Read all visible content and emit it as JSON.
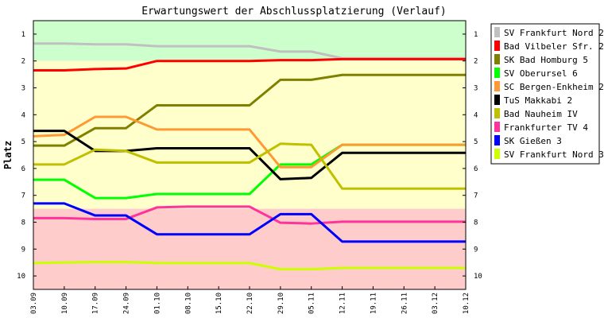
{
  "chart_data": {
    "type": "line",
    "title": "Erwartungswert der Abschlussplatzierung (Verlauf)",
    "ylabel": "Platz",
    "xlabel": "",
    "categories": [
      "03.09",
      "10.09",
      "17.09",
      "24.09",
      "01.10",
      "08.10",
      "15.10",
      "22.10",
      "29.10",
      "05.11",
      "12.11",
      "19.11",
      "26.11",
      "03.12",
      "10.12"
    ],
    "ylim": [
      0.5,
      10.5
    ],
    "y_inverted": true,
    "y_ticks": [
      1,
      2,
      3,
      4,
      5,
      6,
      7,
      8,
      9,
      10
    ],
    "y_ticks_right": true,
    "grid": false,
    "legend_position": "right",
    "background_bands": [
      {
        "from": 0.5,
        "to": 2.0,
        "color": "#ccffcc"
      },
      {
        "from": 2.0,
        "to": 7.5,
        "color": "#ffffcc"
      },
      {
        "from": 7.5,
        "to": 10.5,
        "color": "#ffcccc"
      }
    ],
    "series": [
      {
        "name": "SV Frankfurt Nord 2",
        "color": "#c0c0c0",
        "values": [
          1.35,
          1.35,
          1.38,
          1.38,
          1.45,
          1.45,
          1.45,
          1.45,
          1.65,
          1.65,
          1.9,
          1.9,
          1.9,
          1.9,
          1.9
        ]
      },
      {
        "name": "Bad Vilbeler Sfr. 2",
        "color": "#ff0000",
        "values": [
          2.35,
          2.35,
          2.3,
          2.28,
          2.0,
          2.0,
          2.0,
          2.0,
          1.97,
          1.97,
          1.93,
          1.93,
          1.93,
          1.93,
          1.93
        ]
      },
      {
        "name": "SK Bad Homburg 5",
        "color": "#808000",
        "values": [
          5.15,
          5.15,
          4.5,
          4.5,
          3.65,
          3.65,
          3.65,
          3.65,
          2.7,
          2.7,
          2.52,
          2.52,
          2.52,
          2.52,
          2.52
        ]
      },
      {
        "name": "SV Oberursel 6",
        "color": "#00ff00",
        "values": [
          6.42,
          6.42,
          7.1,
          7.1,
          6.95,
          6.95,
          6.95,
          6.95,
          5.85,
          5.85,
          5.12,
          5.12,
          5.12,
          5.12,
          5.12
        ]
      },
      {
        "name": "SC Bergen-Enkheim 2",
        "color": "#ff9933",
        "values": [
          4.8,
          4.75,
          4.08,
          4.08,
          4.55,
          4.55,
          4.55,
          4.55,
          5.95,
          5.95,
          5.12,
          5.12,
          5.12,
          5.12,
          5.12
        ]
      },
      {
        "name": "TuS Makkabi 2",
        "color": "#000000",
        "values": [
          4.6,
          4.6,
          5.35,
          5.35,
          5.25,
          5.25,
          5.25,
          5.25,
          6.4,
          6.35,
          5.42,
          5.42,
          5.42,
          5.42,
          5.42
        ]
      },
      {
        "name": "Bad Nauheim IV",
        "color": "#c0c000",
        "values": [
          5.85,
          5.85,
          5.3,
          5.35,
          5.78,
          5.78,
          5.78,
          5.78,
          5.08,
          5.12,
          6.75,
          6.75,
          6.75,
          6.75,
          6.75
        ]
      },
      {
        "name": "Frankfurter TV 4",
        "color": "#ff3399",
        "values": [
          7.85,
          7.85,
          7.88,
          7.88,
          7.45,
          7.42,
          7.42,
          7.42,
          8.02,
          8.05,
          7.98,
          7.98,
          7.98,
          7.98,
          7.98
        ]
      },
      {
        "name": "SK Gießen 3",
        "color": "#0000ff",
        "values": [
          7.3,
          7.3,
          7.75,
          7.75,
          8.45,
          8.45,
          8.45,
          8.45,
          7.7,
          7.7,
          8.72,
          8.72,
          8.72,
          8.72,
          8.72
        ]
      },
      {
        "name": "SV Frankfurt Nord 3",
        "color": "#ccff00",
        "values": [
          9.52,
          9.5,
          9.48,
          9.48,
          9.52,
          9.52,
          9.52,
          9.52,
          9.75,
          9.75,
          9.7,
          9.7,
          9.7,
          9.7,
          9.7
        ]
      }
    ]
  }
}
